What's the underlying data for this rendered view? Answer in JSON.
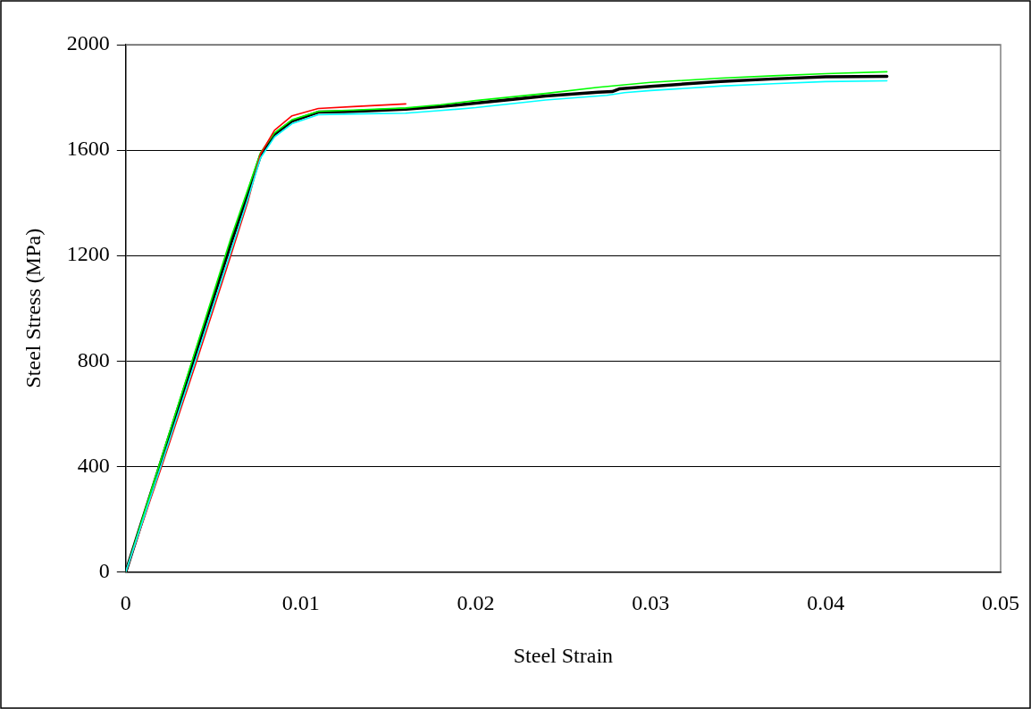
{
  "chart_data": {
    "type": "line",
    "xlabel": "Steel Strain",
    "ylabel": "Steel Stress (MPa)",
    "xlim": [
      0,
      0.05
    ],
    "xticks": [
      0,
      0.01,
      0.02,
      0.03,
      0.04,
      0.05
    ],
    "ylim": [
      0,
      2000
    ],
    "yticks": [
      0,
      400,
      800,
      1200,
      1600,
      2000
    ],
    "grid": "y",
    "legend": false,
    "marker": "none",
    "line_style": "solid",
    "series": [
      {
        "color": "#00ffff",
        "x": [
          0,
          0.002,
          0.004,
          0.006,
          0.007,
          0.0077,
          0.0085,
          0.0095,
          0.011,
          0.013,
          0.016,
          0.018,
          0.02,
          0.024,
          0.0275,
          0.0285,
          0.03,
          0.034,
          0.037,
          0.04,
          0.0435
        ],
        "values": [
          0,
          400,
          805,
          1215,
          1420,
          1570,
          1650,
          1700,
          1734,
          1737,
          1740,
          1750,
          1761,
          1790,
          1808,
          1818,
          1826,
          1843,
          1852,
          1860,
          1863
        ]
      },
      {
        "color": "#ff0000",
        "x": [
          0,
          0.002,
          0.004,
          0.006,
          0.007,
          0.0077,
          0.0085,
          0.0095,
          0.011,
          0.013,
          0.016
        ],
        "values": [
          0,
          390,
          790,
          1200,
          1410,
          1585,
          1675,
          1730,
          1758,
          1765,
          1775
        ]
      },
      {
        "color": "#00ff00",
        "x": [
          0,
          0.002,
          0.004,
          0.006,
          0.007,
          0.0077,
          0.0085,
          0.0095,
          0.011,
          0.013,
          0.016,
          0.018,
          0.02,
          0.024,
          0.027,
          0.03,
          0.034,
          0.037,
          0.04,
          0.0435
        ],
        "values": [
          0,
          425,
          845,
          1265,
          1455,
          1590,
          1665,
          1715,
          1747,
          1752,
          1760,
          1772,
          1788,
          1815,
          1838,
          1857,
          1873,
          1882,
          1890,
          1897
        ]
      },
      {
        "color": "#000000",
        "x": [
          0,
          0.002,
          0.004,
          0.006,
          0.007,
          0.0077,
          0.0085,
          0.0095,
          0.011,
          0.013,
          0.016,
          0.018,
          0.02,
          0.024,
          0.027,
          0.0278,
          0.0282,
          0.03,
          0.034,
          0.037,
          0.04,
          0.0435
        ],
        "values": [
          0,
          415,
          830,
          1245,
          1440,
          1580,
          1660,
          1710,
          1744,
          1747,
          1755,
          1765,
          1778,
          1805,
          1820,
          1822,
          1832,
          1842,
          1860,
          1870,
          1878,
          1880
        ]
      }
    ]
  }
}
